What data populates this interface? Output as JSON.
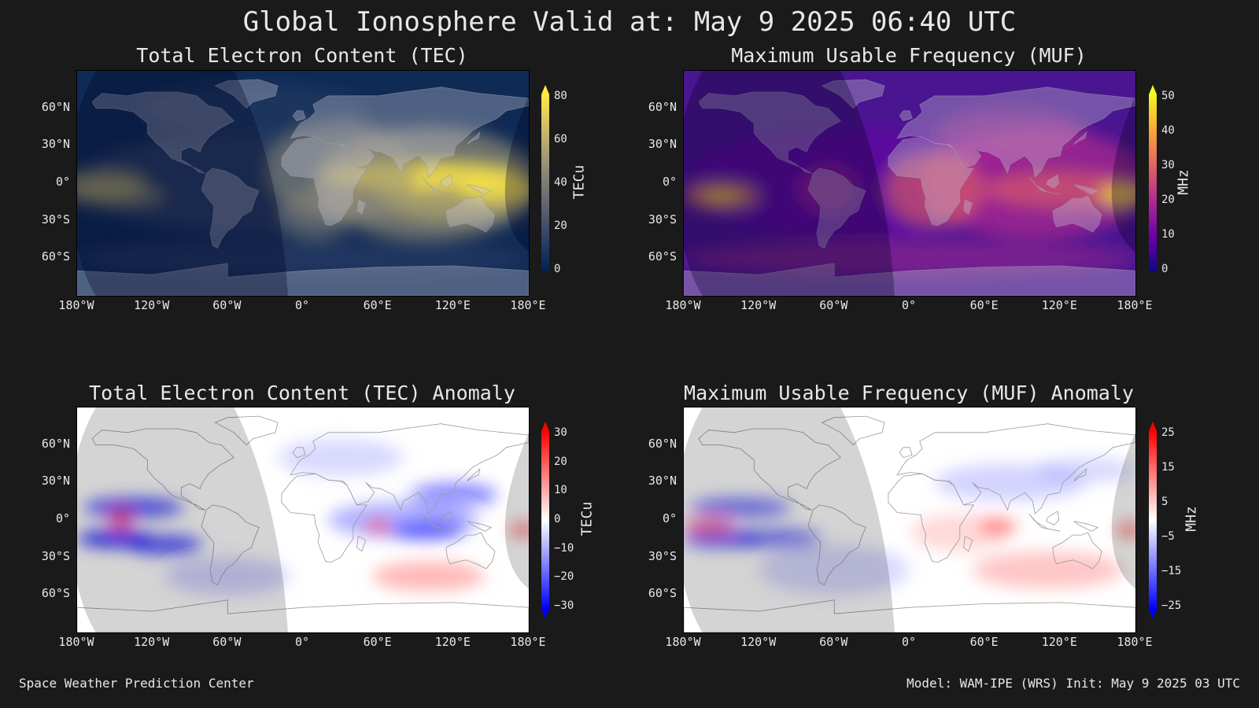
{
  "title": "Global Ionosphere Valid at: May 9 2025 06:40 UTC",
  "footer": {
    "left": "Space Weather Prediction Center",
    "right": "Model: WAM-IPE (WRS) Init: May 9 2025 03 UTC"
  },
  "axes": {
    "x_ticks": [
      "180°W",
      "120°W",
      "60°W",
      "0°",
      "60°E",
      "120°E",
      "180°E"
    ],
    "y_ticks": [
      "60°N",
      "30°N",
      "0°",
      "30°S",
      "60°S"
    ]
  },
  "panels": [
    {
      "id": "tec",
      "title": "Total Electron Content (TEC)",
      "colorbar_label": "TECu",
      "colorbar_ticks": [
        "80",
        "60",
        "40",
        "20",
        "0"
      ],
      "colormap": "cividis",
      "colors": [
        "#00204c",
        "#31446b",
        "#666970",
        "#958f78",
        "#cbba69",
        "#ffe945"
      ]
    },
    {
      "id": "muf",
      "title": "Maximum Usable Frequency (MUF)",
      "colorbar_label": "MHz",
      "colorbar_ticks": [
        "50",
        "40",
        "30",
        "20",
        "10",
        "0"
      ],
      "colormap": "plasma",
      "colors": [
        "#0d0887",
        "#6a00a8",
        "#b12a90",
        "#e16462",
        "#fca636",
        "#f0f921"
      ]
    },
    {
      "id": "tec-anomaly",
      "title": "Total Electron Content (TEC) Anomaly",
      "colorbar_label": "TECu",
      "colorbar_ticks": [
        "30",
        "20",
        "10",
        "0",
        "−10",
        "−20",
        "−30"
      ],
      "colormap": "bwr",
      "colors": [
        "#0000ff",
        "#8080ff",
        "#ffffff",
        "#ff8080",
        "#ff0000"
      ]
    },
    {
      "id": "muf-anomaly",
      "title": "Maximum Usable Frequency (MUF) Anomaly",
      "colorbar_label": "MHz",
      "colorbar_ticks": [
        "25",
        "15",
        "5",
        "−5",
        "−15",
        "−25"
      ],
      "colormap": "bwr",
      "colors": [
        "#0000ff",
        "#8080ff",
        "#ffffff",
        "#ff8080",
        "#ff0000"
      ]
    }
  ],
  "chart_data": [
    {
      "type": "heatmap",
      "title": "Total Electron Content (TEC)",
      "colorbar": {
        "label": "TECu",
        "range": [
          0,
          80
        ],
        "ticks": [
          0,
          20,
          40,
          60,
          80
        ]
      },
      "xlim": [
        -180,
        180
      ],
      "ylim": [
        -90,
        90
      ]
    },
    {
      "type": "heatmap",
      "title": "Maximum Usable Frequency (MUF)",
      "colorbar": {
        "label": "MHz",
        "range": [
          0,
          50
        ],
        "ticks": [
          0,
          10,
          20,
          30,
          40,
          50
        ]
      },
      "xlim": [
        -180,
        180
      ],
      "ylim": [
        -90,
        90
      ]
    },
    {
      "type": "heatmap",
      "title": "Total Electron Content (TEC) Anomaly",
      "colorbar": {
        "label": "TECu",
        "range": [
          -30,
          30
        ],
        "ticks": [
          -30,
          -20,
          -10,
          0,
          10,
          20,
          30
        ]
      },
      "xlim": [
        -180,
        180
      ],
      "ylim": [
        -90,
        90
      ]
    },
    {
      "type": "heatmap",
      "title": "Maximum Usable Frequency (MUF) Anomaly",
      "colorbar": {
        "label": "MHz",
        "range": [
          -25,
          25
        ],
        "ticks": [
          -25,
          -15,
          -5,
          5,
          15,
          25
        ]
      },
      "xlim": [
        -180,
        180
      ],
      "ylim": [
        -90,
        90
      ]
    }
  ]
}
